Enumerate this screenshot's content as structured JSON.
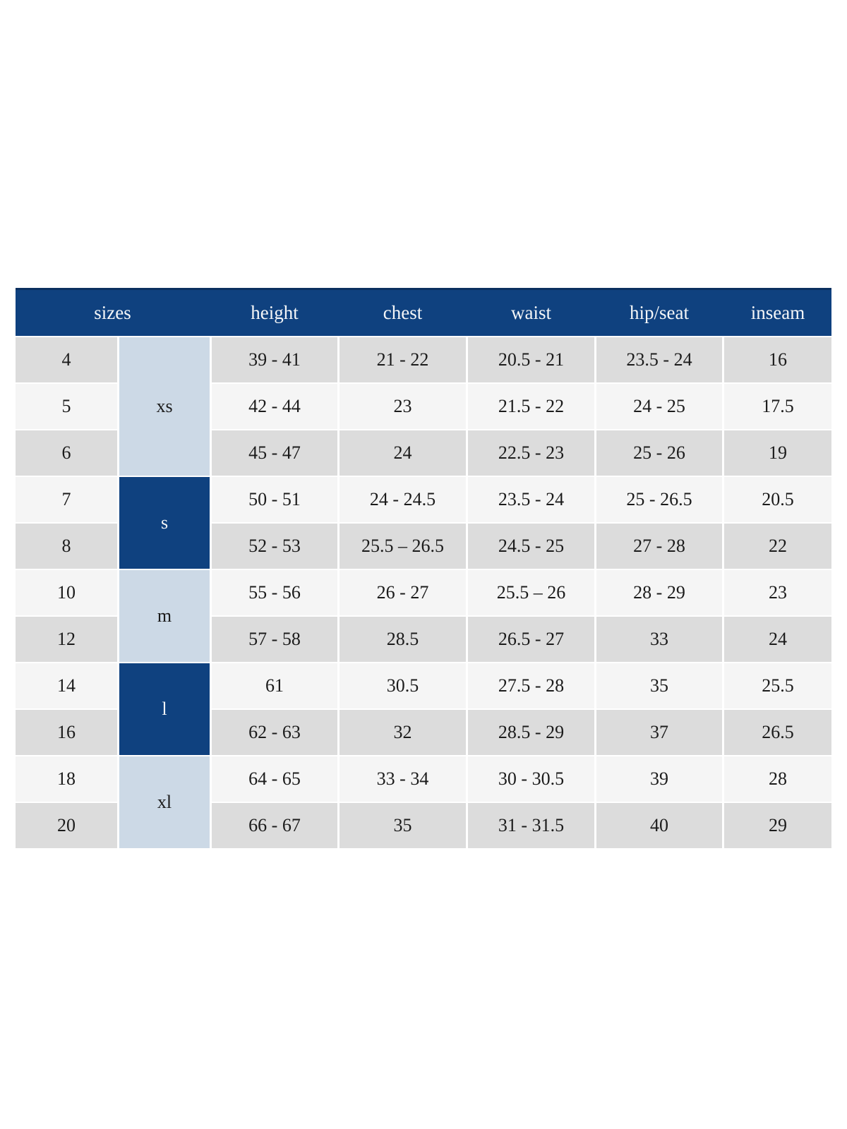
{
  "colors": {
    "header_navy": "#0f417f",
    "header_top_border": "#0b305f",
    "group_light_blue": "#ccd9e6",
    "row_gray": "#dcdcdc",
    "row_light": "#f5f5f5",
    "body_text": "#1b1b1b",
    "header_text": "#f4f6f8"
  },
  "header": {
    "sizes": "sizes",
    "height": "height",
    "chest": "chest",
    "waist": "waist",
    "hip_seat": "hip/seat",
    "inseam": "inseam"
  },
  "groups": [
    {
      "label": "xs",
      "rows": [
        "4",
        "5",
        "6"
      ],
      "style": "light"
    },
    {
      "label": "s",
      "rows": [
        "7",
        "8"
      ],
      "style": "dark"
    },
    {
      "label": "m",
      "rows": [
        "10",
        "12"
      ],
      "style": "light"
    },
    {
      "label": "l",
      "rows": [
        "14",
        "16"
      ],
      "style": "dark"
    },
    {
      "label": "xl",
      "rows": [
        "18",
        "20"
      ],
      "style": "light"
    }
  ],
  "rows": [
    {
      "size": "4",
      "height": "39 - 41",
      "chest": "21 - 22",
      "waist": "20.5 - 21",
      "hip_seat": "23.5 - 24",
      "inseam": "16"
    },
    {
      "size": "5",
      "height": "42 - 44",
      "chest": "23",
      "waist": "21.5 - 22",
      "hip_seat": "24 - 25",
      "inseam": "17.5"
    },
    {
      "size": "6",
      "height": "45 - 47",
      "chest": "24",
      "waist": "22.5 - 23",
      "hip_seat": "25 - 26",
      "inseam": "19"
    },
    {
      "size": "7",
      "height": "50 - 51",
      "chest": "24 - 24.5",
      "waist": "23.5 - 24",
      "hip_seat": "25 - 26.5",
      "inseam": "20.5"
    },
    {
      "size": "8",
      "height": "52 - 53",
      "chest": "25.5 – 26.5",
      "waist": "24.5 - 25",
      "hip_seat": "27 - 28",
      "inseam": "22"
    },
    {
      "size": "10",
      "height": "55 - 56",
      "chest": "26 - 27",
      "waist": "25.5 – 26",
      "hip_seat": "28 - 29",
      "inseam": "23"
    },
    {
      "size": "12",
      "height": "57 - 58",
      "chest": "28.5",
      "waist": "26.5 - 27",
      "hip_seat": "33",
      "inseam": "24"
    },
    {
      "size": "14",
      "height": "61",
      "chest": "30.5",
      "waist": "27.5 - 28",
      "hip_seat": "35",
      "inseam": "25.5"
    },
    {
      "size": "16",
      "height": "62 - 63",
      "chest": "32",
      "waist": "28.5 - 29",
      "hip_seat": "37",
      "inseam": "26.5"
    },
    {
      "size": "18",
      "height": "64 - 65",
      "chest": "33 - 34",
      "waist": "30 - 30.5",
      "hip_seat": "39",
      "inseam": "28"
    },
    {
      "size": "20",
      "height": "66 - 67",
      "chest": "35",
      "waist": "31 - 31.5",
      "hip_seat": "40",
      "inseam": "29"
    }
  ]
}
